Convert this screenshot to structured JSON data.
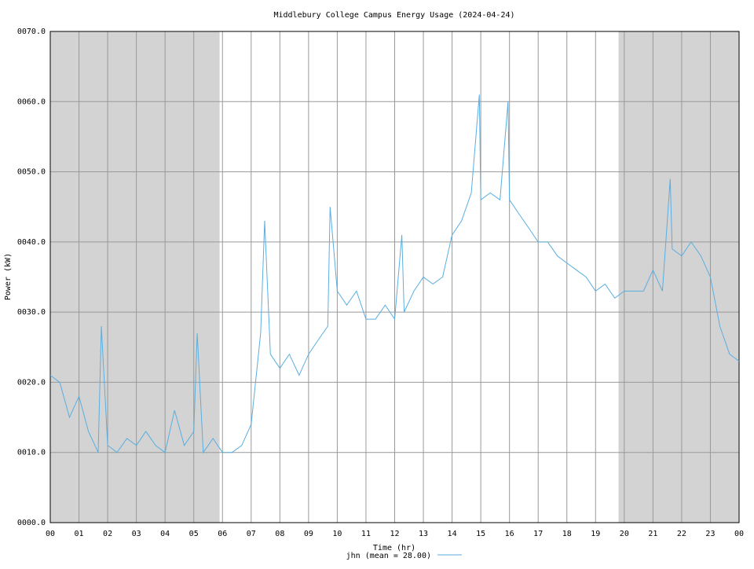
{
  "chart_data": {
    "type": "line",
    "title": "Middlebury College Campus Energy Usage (2024-04-24)",
    "x_label": "Time (hr)",
    "y_label": "Power (kW)",
    "xlim": [
      0,
      24
    ],
    "ylim": [
      0,
      70
    ],
    "xticks": [
      {
        "value": 0,
        "label": "00"
      },
      {
        "value": 1,
        "label": "01"
      },
      {
        "value": 2,
        "label": "02"
      },
      {
        "value": 3,
        "label": "03"
      },
      {
        "value": 4,
        "label": "04"
      },
      {
        "value": 5,
        "label": "05"
      },
      {
        "value": 6,
        "label": "06"
      },
      {
        "value": 7,
        "label": "07"
      },
      {
        "value": 8,
        "label": "08"
      },
      {
        "value": 9,
        "label": "09"
      },
      10,
      11,
      12,
      13,
      14,
      15,
      16,
      17,
      18,
      19,
      20,
      21,
      22,
      23,
      {
        "value": 24,
        "label": "00"
      }
    ],
    "yticks": [
      {
        "value": 0,
        "label": "0000.0"
      },
      {
        "value": 10,
        "label": "0010.0"
      },
      {
        "value": 20,
        "label": "0020.0"
      },
      {
        "value": 30,
        "label": "0030.0"
      },
      {
        "value": 40,
        "label": "0040.0"
      },
      {
        "value": 50,
        "label": "0050.0"
      },
      {
        "value": 60,
        "label": "0060.0"
      },
      {
        "value": 70,
        "label": "0070.0"
      }
    ],
    "grid": true,
    "shaded_ranges": [
      [
        0,
        5.9
      ],
      [
        19.8,
        24
      ]
    ],
    "shade_color": "#d3d3d3",
    "x": [
      0,
      0.33,
      0.67,
      1,
      1.33,
      1.67,
      1.78,
      2,
      2.33,
      2.67,
      3,
      3.33,
      3.67,
      4,
      4.33,
      4.67,
      5,
      5.12,
      5.33,
      5.67,
      6,
      6.33,
      6.67,
      7,
      7.33,
      7.47,
      7.67,
      8,
      8.33,
      8.67,
      9,
      9.33,
      9.67,
      9.75,
      10,
      10.33,
      10.67,
      11,
      11.33,
      11.67,
      12,
      12.25,
      12.33,
      12.67,
      13,
      13.33,
      13.67,
      14,
      14.33,
      14.67,
      14.95,
      15,
      15.33,
      15.67,
      15.95,
      16,
      16.33,
      16.67,
      17,
      17.33,
      17.67,
      18,
      18.33,
      18.67,
      19,
      19.33,
      19.67,
      20,
      20.33,
      20.67,
      21,
      21.33,
      21.6,
      21.67,
      22,
      22.33,
      22.67,
      23,
      23.33,
      23.67,
      24
    ],
    "series": [
      {
        "name": "jhn (mean = 28.00)",
        "color": "#5aaee0",
        "values": [
          21,
          20,
          15,
          18,
          13,
          10,
          28,
          11,
          10,
          12,
          11,
          13,
          11,
          10,
          16,
          11,
          13,
          27,
          10,
          12,
          10,
          10,
          11,
          14,
          27,
          43,
          24,
          22,
          24,
          21,
          24,
          26,
          28,
          45,
          33,
          31,
          33,
          29,
          29,
          31,
          29,
          41,
          30,
          33,
          35,
          34,
          35,
          41,
          43,
          47,
          61,
          46,
          47,
          46,
          60,
          46,
          44,
          42,
          40,
          40,
          38,
          37,
          36,
          35,
          33,
          34,
          32,
          33,
          33,
          33,
          36,
          33,
          49,
          39,
          38,
          40,
          38,
          35,
          28,
          24,
          23
        ]
      }
    ]
  }
}
